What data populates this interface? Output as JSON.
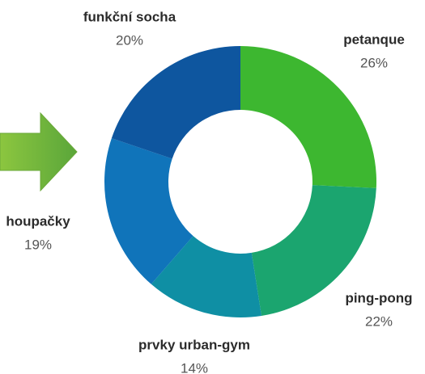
{
  "chart_data": {
    "type": "donut",
    "categories": [
      "petanque",
      "ping-pong",
      "prvky urban-gym",
      "houpačky",
      "funkční socha"
    ],
    "values": [
      26,
      22,
      14,
      19,
      20
    ],
    "value_labels": [
      "26%",
      "22%",
      "14%",
      "19%",
      "20%"
    ],
    "colors": [
      "#3db730",
      "#1ba56f",
      "#0f8fa4",
      "#1074ba",
      "#0e569f"
    ]
  }
}
